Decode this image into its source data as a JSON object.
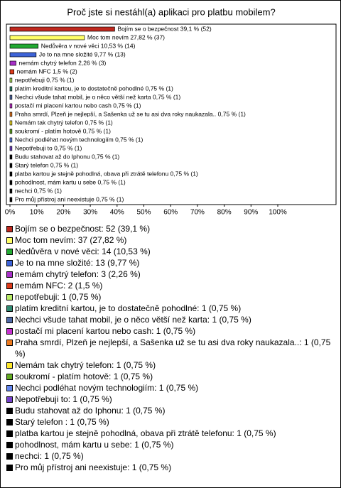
{
  "chart_data": {
    "type": "hbar",
    "title": "Proč jste si nestáhl(a) aplikaci pro platbu mobilem?",
    "values": [
      39.1,
      27.82,
      10.53,
      9.77,
      2.26,
      1.5,
      0.75,
      0.75,
      0.75,
      0.75,
      0.75,
      0.75,
      0.75,
      0.75,
      0.75,
      0.75,
      0.75,
      0.75,
      0.75,
      0.75,
      0.75
    ],
    "value_labels": [
      "Bojím se o bezpečnost 39,1 % (52)",
      "Moc tom nevím 27,82 % (37)",
      "Nedůvěra v nové věci 10,53 % (14)",
      "Je to na mne složité 9,77 % (13)",
      "nemám chytrý telefon 2,26 % (3)",
      "nemám NFC 1,5 % (2)",
      "nepotřebuji 0,75 % (1)",
      "platím kreditní kartou, je to dostatečně pohodlné 0,75 % (1)",
      "Nechci všude tahat mobil, je o něco větší než karta 0,75 % (1)",
      "postačí mi placení kartou nebo cash 0,75 % (1)",
      "Praha smrdí, Plzeň je nejlepší, a Sašenka už se tu asi dva roky naukazala.. 0,75 % (1)",
      "Nemám tak chytrý telefon 0,75 % (1)",
      "soukromí - platím hotově 0,75 % (1)",
      "Nechci podléhat novým technologiím 0,75 % (1)",
      "Nepotřebuji to 0,75 % (1)",
      "Budu stahovat až do Iphonu 0,75 % (1)",
      "Starý telefon  0,75 % (1)",
      "platba kartou je stejně pohodlná, obava při ztrátě telefonu 0,75 % (1)",
      "pohodlnost, mám kartu u sebe 0,75 % (1)",
      "nechci 0,75 % (1)",
      "Pro můj přístroj ani neexistuje 0,75 % (1)"
    ],
    "categories": [
      "Bojím se o bezpečnost: 52 (39,1 %)",
      "Moc tom nevím: 37 (27,82 %)",
      "Nedůvěra v nové věci: 14 (10,53 %)",
      "Je to na mne složité: 13 (9,77 %)",
      "nemám chytrý telefon: 3 (2,26 %)",
      "nemám NFC: 2 (1,5 %)",
      "nepotřebuji: 1 (0,75 %)",
      "platím kreditní kartou, je to dostatečně pohodlné: 1 (0,75 %)",
      "Nechci všude tahat mobil, je o něco větší než karta: 1 (0,75 %)",
      "postačí mi placení kartou nebo cash: 1 (0,75 %)",
      "Praha smrdí, Plzeň je nejlepší, a Sašenka už se tu asi dva roky naukazala..: 1 (0,75 %)",
      "Nemám tak chytrý telefon: 1 (0,75 %)",
      "soukromí - platím hotově: 1 (0,75 %)",
      "Nechci podléhat novým technologiím: 1 (0,75 %)",
      "Nepotřebuji to: 1 (0,75 %)",
      "Budu stahovat až do Iphonu: 1 (0,75 %)",
      "Starý telefon : 1 (0,75 %)",
      "platba kartou je stejně pohodlná, obava při ztrátě telefonu: 1 (0,75 %)",
      "pohodlnost, mám kartu u sebe: 1 (0,75 %)",
      "nechci: 1 (0,75 %)",
      "Pro můj přístroj ani neexistuje: 1 (0,75 %)"
    ],
    "colors": [
      "#c0281e",
      "#ffff66",
      "#22aa33",
      "#3d63d8",
      "#a82fc8",
      "#dd3a1a",
      "#b8ec66",
      "#2f8a72",
      "#4f6aa8",
      "#c62fd0",
      "#ee7a1e",
      "#ffe92a",
      "#62aa22",
      "#6286ee",
      "#7440cc",
      "#000000",
      "#000000",
      "#000000",
      "#000000",
      "#000000",
      "#000000"
    ],
    "xlim": [
      0,
      100
    ],
    "xticks": [
      {
        "value": 0,
        "label": "0%"
      },
      {
        "value": 10,
        "label": "10%"
      },
      {
        "value": 20,
        "label": "20%"
      },
      {
        "value": 30,
        "label": "30%"
      },
      {
        "value": 40,
        "label": "40%"
      },
      {
        "value": 50,
        "label": "50%"
      },
      {
        "value": 60,
        "label": "60%"
      },
      {
        "value": 70,
        "label": "70%"
      },
      {
        "value": 80,
        "label": "80%"
      },
      {
        "value": 90,
        "label": "90%"
      },
      {
        "value": 100,
        "label": "100%"
      }
    ],
    "grid": false
  }
}
